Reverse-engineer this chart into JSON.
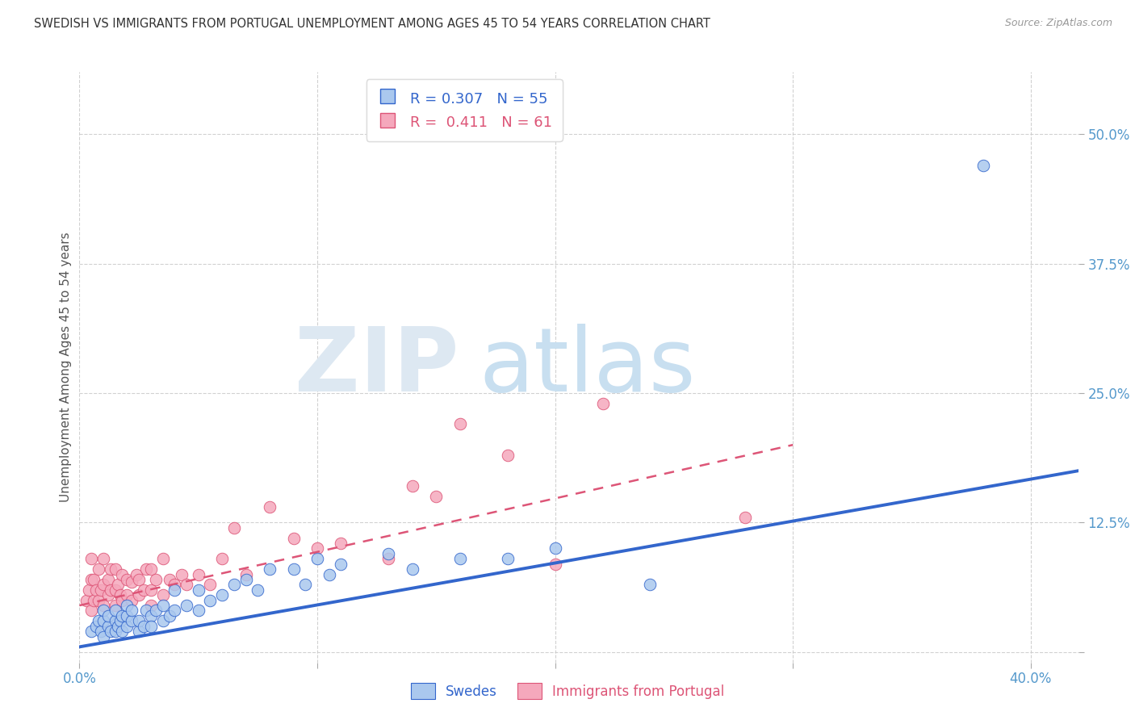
{
  "title": "SWEDISH VS IMMIGRANTS FROM PORTUGAL UNEMPLOYMENT AMONG AGES 45 TO 54 YEARS CORRELATION CHART",
  "source": "Source: ZipAtlas.com",
  "ylabel": "Unemployment Among Ages 45 to 54 years",
  "xlim": [
    0.0,
    0.42
  ],
  "ylim": [
    -0.01,
    0.56
  ],
  "xtick_positions": [
    0.0,
    0.1,
    0.2,
    0.3,
    0.4
  ],
  "xticklabels": [
    "0.0%",
    "",
    "",
    "",
    "40.0%"
  ],
  "ytick_positions": [
    0.0,
    0.125,
    0.25,
    0.375,
    0.5
  ],
  "ytick_labels": [
    "",
    "12.5%",
    "25.0%",
    "37.5%",
    "50.0%"
  ],
  "grid_color": "#cccccc",
  "background_color": "#ffffff",
  "blue_color": "#aac8ee",
  "pink_color": "#f5a8bc",
  "blue_line_color": "#3366cc",
  "pink_line_color": "#dd5577",
  "title_color": "#333333",
  "axis_tick_color": "#5599cc",
  "legend_label_blue": "Swedes",
  "legend_label_pink": "Immigrants from Portugal",
  "blue_scatter_x": [
    0.005,
    0.007,
    0.008,
    0.009,
    0.01,
    0.01,
    0.01,
    0.012,
    0.012,
    0.013,
    0.015,
    0.015,
    0.015,
    0.016,
    0.017,
    0.018,
    0.018,
    0.02,
    0.02,
    0.02,
    0.022,
    0.022,
    0.025,
    0.025,
    0.027,
    0.028,
    0.03,
    0.03,
    0.032,
    0.035,
    0.035,
    0.038,
    0.04,
    0.04,
    0.045,
    0.05,
    0.05,
    0.055,
    0.06,
    0.065,
    0.07,
    0.075,
    0.08,
    0.09,
    0.095,
    0.1,
    0.105,
    0.11,
    0.13,
    0.14,
    0.16,
    0.18,
    0.2,
    0.24,
    0.38
  ],
  "blue_scatter_y": [
    0.02,
    0.025,
    0.03,
    0.02,
    0.03,
    0.04,
    0.015,
    0.025,
    0.035,
    0.02,
    0.03,
    0.04,
    0.02,
    0.025,
    0.03,
    0.02,
    0.035,
    0.025,
    0.035,
    0.045,
    0.03,
    0.04,
    0.02,
    0.03,
    0.025,
    0.04,
    0.035,
    0.025,
    0.04,
    0.03,
    0.045,
    0.035,
    0.04,
    0.06,
    0.045,
    0.04,
    0.06,
    0.05,
    0.055,
    0.065,
    0.07,
    0.06,
    0.08,
    0.08,
    0.065,
    0.09,
    0.075,
    0.085,
    0.095,
    0.08,
    0.09,
    0.09,
    0.1,
    0.065,
    0.47
  ],
  "pink_scatter_x": [
    0.003,
    0.004,
    0.005,
    0.005,
    0.005,
    0.006,
    0.006,
    0.007,
    0.008,
    0.008,
    0.009,
    0.01,
    0.01,
    0.01,
    0.012,
    0.012,
    0.013,
    0.013,
    0.015,
    0.015,
    0.015,
    0.016,
    0.017,
    0.018,
    0.018,
    0.02,
    0.02,
    0.022,
    0.022,
    0.024,
    0.025,
    0.025,
    0.027,
    0.028,
    0.03,
    0.03,
    0.03,
    0.032,
    0.035,
    0.035,
    0.038,
    0.04,
    0.043,
    0.045,
    0.05,
    0.055,
    0.06,
    0.065,
    0.07,
    0.08,
    0.09,
    0.1,
    0.11,
    0.13,
    0.14,
    0.15,
    0.16,
    0.18,
    0.2,
    0.22,
    0.28
  ],
  "pink_scatter_y": [
    0.05,
    0.06,
    0.04,
    0.07,
    0.09,
    0.05,
    0.07,
    0.06,
    0.05,
    0.08,
    0.06,
    0.045,
    0.065,
    0.09,
    0.055,
    0.07,
    0.06,
    0.08,
    0.045,
    0.06,
    0.08,
    0.065,
    0.055,
    0.05,
    0.075,
    0.055,
    0.07,
    0.05,
    0.068,
    0.075,
    0.055,
    0.07,
    0.06,
    0.08,
    0.045,
    0.06,
    0.08,
    0.07,
    0.055,
    0.09,
    0.07,
    0.065,
    0.075,
    0.065,
    0.075,
    0.065,
    0.09,
    0.12,
    0.075,
    0.14,
    0.11,
    0.1,
    0.105,
    0.09,
    0.16,
    0.15,
    0.22,
    0.19,
    0.085,
    0.24,
    0.13
  ],
  "blue_trend_x": [
    0.0,
    0.42
  ],
  "blue_trend_y": [
    0.005,
    0.175
  ],
  "pink_trend_x": [
    0.0,
    0.3
  ],
  "pink_trend_y": [
    0.045,
    0.2
  ],
  "blue_R": "0.307",
  "blue_N": "55",
  "pink_R": "0.411",
  "pink_N": "61"
}
